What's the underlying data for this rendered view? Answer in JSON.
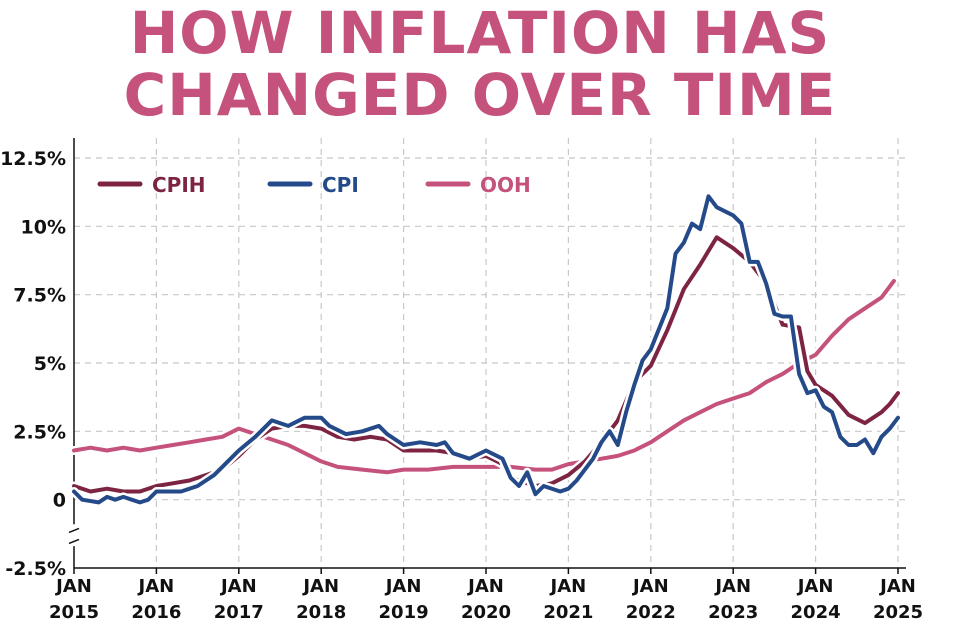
{
  "chart_data": {
    "type": "line",
    "title_lines": [
      "HOW INFLATION HAS",
      "CHANGED OVER TIME"
    ],
    "xlabel": "",
    "ylabel": "",
    "xlim": [
      2015,
      2025
    ],
    "ylim": [
      -2.5,
      12.5
    ],
    "grid": true,
    "legend_position": "top-left",
    "y_ticks": [
      {
        "value": 12.5,
        "label": "12.5%"
      },
      {
        "value": 10,
        "label": "10%"
      },
      {
        "value": 7.5,
        "label": "7.5%"
      },
      {
        "value": 5,
        "label": "5%"
      },
      {
        "value": 2.5,
        "label": "2.5%"
      },
      {
        "value": 0,
        "label": "0"
      },
      {
        "value": -2.5,
        "label": "-2.5%"
      }
    ],
    "x_ticks": [
      {
        "value": 2015,
        "line1": "JAN",
        "line2": "2015"
      },
      {
        "value": 2016,
        "line1": "JAN",
        "line2": "2016"
      },
      {
        "value": 2017,
        "line1": "JAN",
        "line2": "2017"
      },
      {
        "value": 2018,
        "line1": "JAN",
        "line2": "2018"
      },
      {
        "value": 2019,
        "line1": "JAN",
        "line2": "2019"
      },
      {
        "value": 2020,
        "line1": "JAN",
        "line2": "2020"
      },
      {
        "value": 2021,
        "line1": "JAN",
        "line2": "2021"
      },
      {
        "value": 2022,
        "line1": "JAN",
        "line2": "2022"
      },
      {
        "value": 2023,
        "line1": "JAN",
        "line2": "2023"
      },
      {
        "value": 2024,
        "line1": "JAN",
        "line2": "2024"
      },
      {
        "value": 2025,
        "line1": "JAN",
        "line2": "2025"
      }
    ],
    "series": [
      {
        "name": "OOH",
        "color": "#c5527c",
        "points": [
          [
            2015.0,
            1.8
          ],
          [
            2015.2,
            1.9
          ],
          [
            2015.4,
            1.8
          ],
          [
            2015.6,
            1.9
          ],
          [
            2015.8,
            1.8
          ],
          [
            2016.0,
            1.9
          ],
          [
            2016.2,
            2.0
          ],
          [
            2016.4,
            2.1
          ],
          [
            2016.6,
            2.2
          ],
          [
            2016.8,
            2.3
          ],
          [
            2017.0,
            2.6
          ],
          [
            2017.2,
            2.4
          ],
          [
            2017.4,
            2.2
          ],
          [
            2017.6,
            2.0
          ],
          [
            2017.8,
            1.7
          ],
          [
            2018.0,
            1.4
          ],
          [
            2018.2,
            1.2
          ],
          [
            2018.5,
            1.1
          ],
          [
            2018.8,
            1.0
          ],
          [
            2019.0,
            1.1
          ],
          [
            2019.3,
            1.1
          ],
          [
            2019.6,
            1.2
          ],
          [
            2019.8,
            1.2
          ],
          [
            2020.0,
            1.2
          ],
          [
            2020.3,
            1.2
          ],
          [
            2020.6,
            1.1
          ],
          [
            2020.8,
            1.1
          ],
          [
            2021.0,
            1.3
          ],
          [
            2021.2,
            1.4
          ],
          [
            2021.4,
            1.5
          ],
          [
            2021.6,
            1.6
          ],
          [
            2021.8,
            1.8
          ],
          [
            2022.0,
            2.1
          ],
          [
            2022.2,
            2.5
          ],
          [
            2022.4,
            2.9
          ],
          [
            2022.6,
            3.2
          ],
          [
            2022.8,
            3.5
          ],
          [
            2023.0,
            3.7
          ],
          [
            2023.2,
            3.9
          ],
          [
            2023.4,
            4.3
          ],
          [
            2023.6,
            4.6
          ],
          [
            2023.8,
            5.0
          ],
          [
            2024.0,
            5.3
          ],
          [
            2024.2,
            6.0
          ],
          [
            2024.4,
            6.6
          ],
          [
            2024.6,
            7.0
          ],
          [
            2024.8,
            7.4
          ],
          [
            2024.95,
            8.0
          ]
        ]
      },
      {
        "name": "CPIH",
        "color": "#7d2443",
        "points": [
          [
            2015.0,
            0.5
          ],
          [
            2015.2,
            0.3
          ],
          [
            2015.4,
            0.4
          ],
          [
            2015.6,
            0.3
          ],
          [
            2015.8,
            0.3
          ],
          [
            2016.0,
            0.5
          ],
          [
            2016.2,
            0.6
          ],
          [
            2016.4,
            0.7
          ],
          [
            2016.6,
            0.9
          ],
          [
            2016.8,
            1.1
          ],
          [
            2017.0,
            1.6
          ],
          [
            2017.2,
            2.2
          ],
          [
            2017.4,
            2.6
          ],
          [
            2017.6,
            2.7
          ],
          [
            2017.8,
            2.7
          ],
          [
            2018.0,
            2.6
          ],
          [
            2018.2,
            2.3
          ],
          [
            2018.4,
            2.2
          ],
          [
            2018.6,
            2.3
          ],
          [
            2018.8,
            2.2
          ],
          [
            2019.0,
            1.8
          ],
          [
            2019.2,
            1.8
          ],
          [
            2019.4,
            1.8
          ],
          [
            2019.6,
            1.7
          ],
          [
            2019.8,
            1.5
          ],
          [
            2020.0,
            1.6
          ],
          [
            2020.2,
            1.3
          ],
          [
            2020.3,
            0.8
          ],
          [
            2020.5,
            0.6
          ],
          [
            2020.6,
            0.5
          ],
          [
            2020.8,
            0.6
          ],
          [
            2021.0,
            0.9
          ],
          [
            2021.2,
            1.4
          ],
          [
            2021.4,
            2.1
          ],
          [
            2021.6,
            2.9
          ],
          [
            2021.8,
            4.3
          ],
          [
            2022.0,
            4.9
          ],
          [
            2022.2,
            6.2
          ],
          [
            2022.4,
            7.7
          ],
          [
            2022.6,
            8.6
          ],
          [
            2022.8,
            9.6
          ],
          [
            2023.0,
            9.2
          ],
          [
            2023.2,
            8.7
          ],
          [
            2023.4,
            7.9
          ],
          [
            2023.6,
            6.4
          ],
          [
            2023.8,
            6.3
          ],
          [
            2023.9,
            4.7
          ],
          [
            2024.0,
            4.2
          ],
          [
            2024.2,
            3.8
          ],
          [
            2024.4,
            3.1
          ],
          [
            2024.6,
            2.8
          ],
          [
            2024.8,
            3.2
          ],
          [
            2024.9,
            3.5
          ],
          [
            2025.0,
            3.9
          ]
        ]
      },
      {
        "name": "CPI",
        "color": "#254a8a",
        "points": [
          [
            2015.0,
            0.3
          ],
          [
            2015.1,
            0.0
          ],
          [
            2015.3,
            -0.1
          ],
          [
            2015.4,
            0.1
          ],
          [
            2015.5,
            0.0
          ],
          [
            2015.6,
            0.1
          ],
          [
            2015.8,
            -0.1
          ],
          [
            2015.9,
            0.0
          ],
          [
            2016.0,
            0.3
          ],
          [
            2016.2,
            0.3
          ],
          [
            2016.3,
            0.3
          ],
          [
            2016.5,
            0.5
          ],
          [
            2016.7,
            0.9
          ],
          [
            2016.8,
            1.2
          ],
          [
            2017.0,
            1.8
          ],
          [
            2017.2,
            2.3
          ],
          [
            2017.4,
            2.9
          ],
          [
            2017.6,
            2.7
          ],
          [
            2017.8,
            3.0
          ],
          [
            2018.0,
            3.0
          ],
          [
            2018.1,
            2.7
          ],
          [
            2018.3,
            2.4
          ],
          [
            2018.5,
            2.5
          ],
          [
            2018.7,
            2.7
          ],
          [
            2018.8,
            2.4
          ],
          [
            2019.0,
            2.0
          ],
          [
            2019.2,
            2.1
          ],
          [
            2019.4,
            2.0
          ],
          [
            2019.5,
            2.1
          ],
          [
            2019.6,
            1.7
          ],
          [
            2019.8,
            1.5
          ],
          [
            2020.0,
            1.8
          ],
          [
            2020.2,
            1.5
          ],
          [
            2020.3,
            0.8
          ],
          [
            2020.4,
            0.5
          ],
          [
            2020.5,
            1.0
          ],
          [
            2020.6,
            0.2
          ],
          [
            2020.7,
            0.5
          ],
          [
            2020.9,
            0.3
          ],
          [
            2021.0,
            0.4
          ],
          [
            2021.1,
            0.7
          ],
          [
            2021.3,
            1.5
          ],
          [
            2021.4,
            2.1
          ],
          [
            2021.5,
            2.5
          ],
          [
            2021.6,
            2.0
          ],
          [
            2021.7,
            3.2
          ],
          [
            2021.8,
            4.2
          ],
          [
            2021.9,
            5.1
          ],
          [
            2022.0,
            5.5
          ],
          [
            2022.2,
            7.0
          ],
          [
            2022.3,
            9.0
          ],
          [
            2022.4,
            9.4
          ],
          [
            2022.5,
            10.1
          ],
          [
            2022.6,
            9.9
          ],
          [
            2022.7,
            11.1
          ],
          [
            2022.8,
            10.7
          ],
          [
            2023.0,
            10.4
          ],
          [
            2023.1,
            10.1
          ],
          [
            2023.2,
            8.7
          ],
          [
            2023.3,
            8.7
          ],
          [
            2023.4,
            7.9
          ],
          [
            2023.5,
            6.8
          ],
          [
            2023.6,
            6.7
          ],
          [
            2023.7,
            6.7
          ],
          [
            2023.8,
            4.6
          ],
          [
            2023.9,
            3.9
          ],
          [
            2024.0,
            4.0
          ],
          [
            2024.1,
            3.4
          ],
          [
            2024.2,
            3.2
          ],
          [
            2024.3,
            2.3
          ],
          [
            2024.4,
            2.0
          ],
          [
            2024.5,
            2.0
          ],
          [
            2024.6,
            2.2
          ],
          [
            2024.7,
            1.7
          ],
          [
            2024.8,
            2.3
          ],
          [
            2024.9,
            2.6
          ],
          [
            2025.0,
            3.0
          ]
        ]
      }
    ]
  }
}
